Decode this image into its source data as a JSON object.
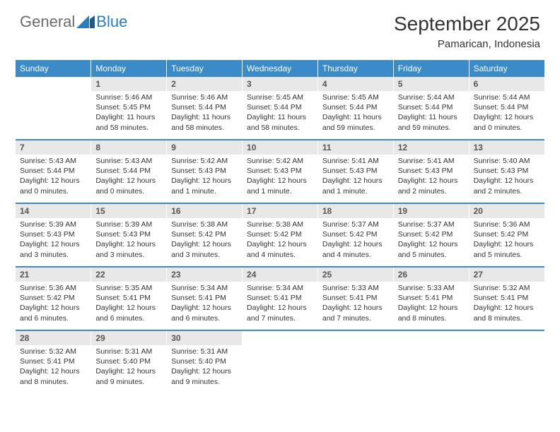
{
  "logo": {
    "gray": "General",
    "blue": "Blue"
  },
  "title": "September 2025",
  "location": "Pamarican, Indonesia",
  "colors": {
    "header_bg": "#3b8bc9",
    "header_text": "#ffffff",
    "daynum_bg": "#e8e8e8",
    "daynum_text": "#555555",
    "body_text": "#333333",
    "logo_gray": "#6b6b6b",
    "logo_blue": "#2b7bbf"
  },
  "days_of_week": [
    "Sunday",
    "Monday",
    "Tuesday",
    "Wednesday",
    "Thursday",
    "Friday",
    "Saturday"
  ],
  "weeks": [
    {
      "nums": [
        "",
        "1",
        "2",
        "3",
        "4",
        "5",
        "6"
      ],
      "cells": [
        {
          "sunrise": "",
          "sunset": "",
          "daylight": ""
        },
        {
          "sunrise": "Sunrise: 5:46 AM",
          "sunset": "Sunset: 5:45 PM",
          "daylight": "Daylight: 11 hours and 58 minutes."
        },
        {
          "sunrise": "Sunrise: 5:46 AM",
          "sunset": "Sunset: 5:44 PM",
          "daylight": "Daylight: 11 hours and 58 minutes."
        },
        {
          "sunrise": "Sunrise: 5:45 AM",
          "sunset": "Sunset: 5:44 PM",
          "daylight": "Daylight: 11 hours and 58 minutes."
        },
        {
          "sunrise": "Sunrise: 5:45 AM",
          "sunset": "Sunset: 5:44 PM",
          "daylight": "Daylight: 11 hours and 59 minutes."
        },
        {
          "sunrise": "Sunrise: 5:44 AM",
          "sunset": "Sunset: 5:44 PM",
          "daylight": "Daylight: 11 hours and 59 minutes."
        },
        {
          "sunrise": "Sunrise: 5:44 AM",
          "sunset": "Sunset: 5:44 PM",
          "daylight": "Daylight: 12 hours and 0 minutes."
        }
      ]
    },
    {
      "nums": [
        "7",
        "8",
        "9",
        "10",
        "11",
        "12",
        "13"
      ],
      "cells": [
        {
          "sunrise": "Sunrise: 5:43 AM",
          "sunset": "Sunset: 5:44 PM",
          "daylight": "Daylight: 12 hours and 0 minutes."
        },
        {
          "sunrise": "Sunrise: 5:43 AM",
          "sunset": "Sunset: 5:44 PM",
          "daylight": "Daylight: 12 hours and 0 minutes."
        },
        {
          "sunrise": "Sunrise: 5:42 AM",
          "sunset": "Sunset: 5:43 PM",
          "daylight": "Daylight: 12 hours and 1 minute."
        },
        {
          "sunrise": "Sunrise: 5:42 AM",
          "sunset": "Sunset: 5:43 PM",
          "daylight": "Daylight: 12 hours and 1 minute."
        },
        {
          "sunrise": "Sunrise: 5:41 AM",
          "sunset": "Sunset: 5:43 PM",
          "daylight": "Daylight: 12 hours and 1 minute."
        },
        {
          "sunrise": "Sunrise: 5:41 AM",
          "sunset": "Sunset: 5:43 PM",
          "daylight": "Daylight: 12 hours and 2 minutes."
        },
        {
          "sunrise": "Sunrise: 5:40 AM",
          "sunset": "Sunset: 5:43 PM",
          "daylight": "Daylight: 12 hours and 2 minutes."
        }
      ]
    },
    {
      "nums": [
        "14",
        "15",
        "16",
        "17",
        "18",
        "19",
        "20"
      ],
      "cells": [
        {
          "sunrise": "Sunrise: 5:39 AM",
          "sunset": "Sunset: 5:43 PM",
          "daylight": "Daylight: 12 hours and 3 minutes."
        },
        {
          "sunrise": "Sunrise: 5:39 AM",
          "sunset": "Sunset: 5:43 PM",
          "daylight": "Daylight: 12 hours and 3 minutes."
        },
        {
          "sunrise": "Sunrise: 5:38 AM",
          "sunset": "Sunset: 5:42 PM",
          "daylight": "Daylight: 12 hours and 3 minutes."
        },
        {
          "sunrise": "Sunrise: 5:38 AM",
          "sunset": "Sunset: 5:42 PM",
          "daylight": "Daylight: 12 hours and 4 minutes."
        },
        {
          "sunrise": "Sunrise: 5:37 AM",
          "sunset": "Sunset: 5:42 PM",
          "daylight": "Daylight: 12 hours and 4 minutes."
        },
        {
          "sunrise": "Sunrise: 5:37 AM",
          "sunset": "Sunset: 5:42 PM",
          "daylight": "Daylight: 12 hours and 5 minutes."
        },
        {
          "sunrise": "Sunrise: 5:36 AM",
          "sunset": "Sunset: 5:42 PM",
          "daylight": "Daylight: 12 hours and 5 minutes."
        }
      ]
    },
    {
      "nums": [
        "21",
        "22",
        "23",
        "24",
        "25",
        "26",
        "27"
      ],
      "cells": [
        {
          "sunrise": "Sunrise: 5:36 AM",
          "sunset": "Sunset: 5:42 PM",
          "daylight": "Daylight: 12 hours and 6 minutes."
        },
        {
          "sunrise": "Sunrise: 5:35 AM",
          "sunset": "Sunset: 5:41 PM",
          "daylight": "Daylight: 12 hours and 6 minutes."
        },
        {
          "sunrise": "Sunrise: 5:34 AM",
          "sunset": "Sunset: 5:41 PM",
          "daylight": "Daylight: 12 hours and 6 minutes."
        },
        {
          "sunrise": "Sunrise: 5:34 AM",
          "sunset": "Sunset: 5:41 PM",
          "daylight": "Daylight: 12 hours and 7 minutes."
        },
        {
          "sunrise": "Sunrise: 5:33 AM",
          "sunset": "Sunset: 5:41 PM",
          "daylight": "Daylight: 12 hours and 7 minutes."
        },
        {
          "sunrise": "Sunrise: 5:33 AM",
          "sunset": "Sunset: 5:41 PM",
          "daylight": "Daylight: 12 hours and 8 minutes."
        },
        {
          "sunrise": "Sunrise: 5:32 AM",
          "sunset": "Sunset: 5:41 PM",
          "daylight": "Daylight: 12 hours and 8 minutes."
        }
      ]
    },
    {
      "nums": [
        "28",
        "29",
        "30",
        "",
        "",
        "",
        ""
      ],
      "cells": [
        {
          "sunrise": "Sunrise: 5:32 AM",
          "sunset": "Sunset: 5:41 PM",
          "daylight": "Daylight: 12 hours and 8 minutes."
        },
        {
          "sunrise": "Sunrise: 5:31 AM",
          "sunset": "Sunset: 5:40 PM",
          "daylight": "Daylight: 12 hours and 9 minutes."
        },
        {
          "sunrise": "Sunrise: 5:31 AM",
          "sunset": "Sunset: 5:40 PM",
          "daylight": "Daylight: 12 hours and 9 minutes."
        },
        {
          "sunrise": "",
          "sunset": "",
          "daylight": ""
        },
        {
          "sunrise": "",
          "sunset": "",
          "daylight": ""
        },
        {
          "sunrise": "",
          "sunset": "",
          "daylight": ""
        },
        {
          "sunrise": "",
          "sunset": "",
          "daylight": ""
        }
      ]
    }
  ]
}
